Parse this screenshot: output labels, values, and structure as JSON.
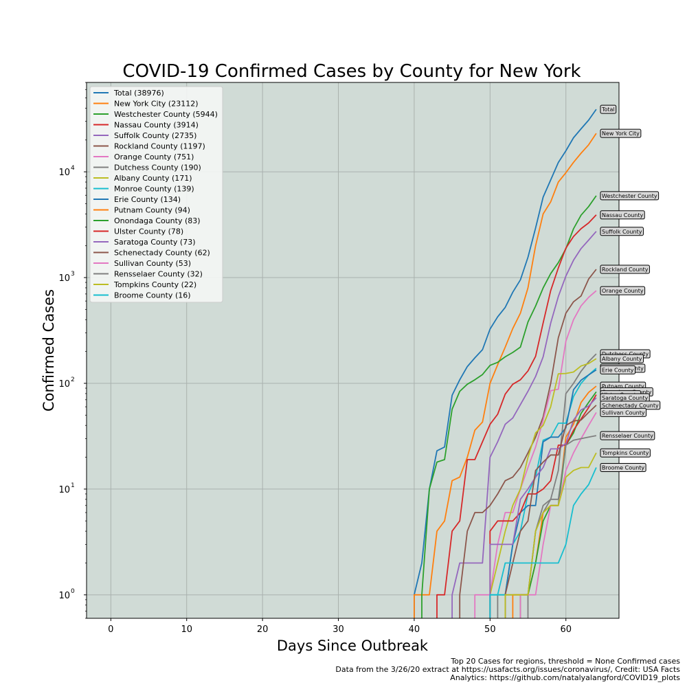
{
  "chart_data": {
    "type": "line",
    "title": "COVID-19 Confirmed Cases by County for New York",
    "xlabel": "Days Since Outbreak",
    "ylabel": "Confirmed Cases",
    "xlim": [
      -3.2,
      67
    ],
    "ylim": [
      0.6,
      70000
    ],
    "yscale": "log",
    "x_ticks": [
      0,
      10,
      20,
      30,
      40,
      50,
      60
    ],
    "y_ticks": [
      {
        "value": 1,
        "base": "10",
        "exp": "0"
      },
      {
        "value": 10,
        "base": "10",
        "exp": "1"
      },
      {
        "value": 100,
        "base": "10",
        "exp": "2"
      },
      {
        "value": 1000,
        "base": "10",
        "exp": "3"
      },
      {
        "value": 10000,
        "base": "10",
        "exp": "4"
      }
    ],
    "grid": true,
    "legend_position": "upper-left",
    "plot_background": "#d0dbd6",
    "series": [
      {
        "name": "Total",
        "legend": "Total (38976)",
        "end_label": "Total",
        "color": "#1f77b4",
        "x": [
          40,
          41,
          42,
          43,
          44,
          45,
          46,
          47,
          48,
          49,
          50,
          51,
          52,
          53,
          54,
          55,
          56,
          57,
          58,
          59,
          60,
          61,
          62,
          63,
          64
        ],
        "y": [
          1,
          2,
          10,
          23,
          25,
          77,
          108,
          144,
          174,
          208,
          326,
          425,
          523,
          728,
          953,
          1555,
          2940,
          5765,
          8377,
          12261,
          15800,
          21000,
          25500,
          30800,
          38976
        ]
      },
      {
        "name": "New York City",
        "legend": "New York City (23112)",
        "end_label": "New York City",
        "color": "#ff7f0e",
        "x": [
          40,
          41,
          42,
          43,
          44,
          45,
          46,
          47,
          48,
          49,
          50,
          51,
          52,
          53,
          54,
          55,
          56,
          57,
          58,
          59,
          60,
          61,
          62,
          63,
          64
        ],
        "y": [
          1,
          1,
          1,
          4,
          5,
          12,
          13,
          20,
          36,
          43,
          100,
          150,
          220,
          330,
          460,
          800,
          2000,
          4000,
          5200,
          8000,
          9800,
          12300,
          15000,
          18000,
          23112
        ]
      },
      {
        "name": "Westchester County",
        "legend": "Westchester County (5944)",
        "end_label": "Westchester County",
        "color": "#2ca02c",
        "x": [
          41,
          42,
          43,
          44,
          45,
          46,
          47,
          48,
          49,
          50,
          51,
          52,
          53,
          54,
          55,
          56,
          57,
          58,
          59,
          60,
          61,
          62,
          63,
          64
        ],
        "y": [
          1,
          10,
          18,
          19,
          57,
          84,
          98,
          108,
          121,
          148,
          158,
          178,
          196,
          220,
          380,
          538,
          798,
          1091,
          1385,
          1873,
          2894,
          3891,
          4691,
          5944
        ]
      },
      {
        "name": "Nassau County",
        "legend": "Nassau County (3914)",
        "end_label": "Nassau County",
        "color": "#d62728",
        "x": [
          43,
          44,
          45,
          46,
          47,
          48,
          49,
          50,
          51,
          52,
          53,
          54,
          55,
          56,
          57,
          58,
          59,
          60,
          61,
          62,
          63,
          64
        ],
        "y": [
          1,
          1,
          4,
          5,
          19,
          19,
          28,
          41,
          51,
          79,
          98,
          108,
          131,
          180,
          372,
          754,
          1234,
          1900,
          2442,
          2900,
          3285,
          3914
        ]
      },
      {
        "name": "Suffolk County",
        "legend": "Suffolk County (2735)",
        "end_label": "Suffolk County",
        "color": "#9467bd",
        "x": [
          45,
          46,
          47,
          48,
          49,
          50,
          51,
          52,
          53,
          54,
          55,
          56,
          57,
          58,
          59,
          60,
          61,
          62,
          63,
          64
        ],
        "y": [
          1,
          2,
          2,
          2,
          2,
          20,
          28,
          41,
          47,
          63,
          84,
          116,
          178,
          371,
          662,
          1034,
          1458,
          1880,
          2260,
          2735
        ]
      },
      {
        "name": "Rockland County",
        "legend": "Rockland County (1197)",
        "end_label": "Rockland County",
        "color": "#8c564b",
        "x": [
          46,
          47,
          48,
          49,
          50,
          51,
          52,
          53,
          54,
          55,
          56,
          57,
          58,
          59,
          60,
          61,
          62,
          63,
          64
        ],
        "y": [
          1,
          4,
          6,
          6,
          7,
          9,
          12,
          13,
          16,
          22,
          31,
          48,
          100,
          270,
          460,
          590,
          670,
          968,
          1197
        ]
      },
      {
        "name": "Orange County",
        "legend": "Orange County (751)",
        "end_label": "Orange County",
        "color": "#e377c2",
        "x": [
          48,
          49,
          50,
          51,
          52,
          53,
          54,
          55,
          56,
          57,
          58,
          59,
          60,
          61,
          62,
          63,
          64
        ],
        "y": [
          1,
          1,
          1,
          3,
          6,
          6,
          10,
          16,
          25,
          45,
          85,
          88,
          250,
          400,
          540,
          650,
          751
        ]
      },
      {
        "name": "Dutchess County",
        "legend": "Dutchess County (190)",
        "end_label": "Dutchess County",
        "color": "#7f7f7f",
        "x": [
          51,
          52,
          53,
          54,
          55,
          56,
          57,
          58,
          59,
          60,
          61,
          62,
          63,
          64
        ],
        "y": [
          1,
          1,
          1,
          1,
          1,
          4,
          7,
          8,
          15,
          80,
          100,
          130,
          160,
          190
        ]
      },
      {
        "name": "Albany County",
        "legend": "Albany County (171)",
        "end_label": "Albany County",
        "color": "#bcbd22",
        "x": [
          50,
          51,
          52,
          53,
          54,
          55,
          56,
          57,
          58,
          59,
          60,
          61,
          62,
          63,
          64
        ],
        "y": [
          1,
          2,
          4,
          7,
          10,
          20,
          34,
          40,
          60,
          123,
          124,
          128,
          146,
          154,
          171
        ]
      },
      {
        "name": "Monroe County",
        "legend": "Monroe County (139)",
        "end_label": "Monroe County",
        "color": "#17becf",
        "x": [
          50,
          51,
          52,
          53,
          54,
          55,
          56,
          57,
          58,
          59,
          60,
          61,
          62,
          63,
          64
        ],
        "y": [
          1,
          1,
          1,
          3,
          4,
          9,
          13,
          29,
          31,
          42,
          42,
          75,
          100,
          120,
          139
        ]
      },
      {
        "name": "Erie County",
        "legend": "Erie County (134)",
        "end_label": "Erie County",
        "color": "#1f77b4",
        "x": [
          52,
          53,
          54,
          55,
          56,
          57,
          58,
          59,
          60,
          61,
          62,
          63,
          64
        ],
        "y": [
          1,
          3,
          6,
          7,
          7,
          28,
          31,
          31,
          38,
          87,
          107,
          120,
          134
        ]
      },
      {
        "name": "Putnam County",
        "legend": "Putnam County (94)",
        "end_label": "Putnam County",
        "color": "#ff7f0e",
        "x": [
          53,
          54,
          55,
          56,
          57,
          58,
          59,
          60,
          61,
          62,
          63,
          64
        ],
        "y": [
          1,
          1,
          1,
          2,
          6,
          7,
          7,
          31,
          41,
          66,
          82,
          94
        ]
      },
      {
        "name": "Onondaga County",
        "legend": "Onondaga County (83)",
        "end_label": "Onondaga County",
        "color": "#2ca02c",
        "x": [
          54,
          55,
          56,
          57,
          58,
          59,
          60,
          61,
          62,
          63,
          64
        ],
        "y": [
          1,
          1,
          2,
          5,
          7,
          7,
          26,
          34,
          52,
          66,
          83
        ]
      },
      {
        "name": "Ulster County",
        "legend": "Ulster County (78)",
        "end_label": "Ulster County",
        "color": "#d62728",
        "x": [
          50,
          51,
          52,
          53,
          54,
          55,
          56,
          57,
          58,
          59,
          60,
          61,
          62,
          63,
          64
        ],
        "y": [
          4,
          5,
          5,
          5,
          6,
          9,
          9,
          10,
          12,
          26,
          26,
          36,
          46,
          59,
          78
        ]
      },
      {
        "name": "Saratoga County",
        "legend": "Saratoga County (73)",
        "end_label": "Saratoga County",
        "color": "#9467bd",
        "x": [
          50,
          51,
          52,
          53,
          54,
          55,
          56,
          57,
          58,
          59,
          60,
          61,
          62,
          63,
          64
        ],
        "y": [
          3,
          3,
          3,
          3,
          8,
          10,
          13,
          16,
          24,
          24,
          27,
          45,
          56,
          61,
          73
        ]
      },
      {
        "name": "Schenectady County",
        "legend": "Schenectady County (62)",
        "end_label": "Schenectady County",
        "color": "#8c564b",
        "x": [
          52,
          53,
          54,
          55,
          56,
          57,
          58,
          59,
          60,
          61,
          62,
          63,
          64
        ],
        "y": [
          1,
          2,
          4,
          5,
          15,
          18,
          21,
          21,
          40,
          44,
          45,
          53,
          62
        ]
      },
      {
        "name": "Sullivan County",
        "legend": "Sullivan County (53)",
        "end_label": "Sullivan County",
        "color": "#e377c2",
        "x": [
          54,
          55,
          56,
          57,
          58,
          59,
          60,
          61,
          62,
          63,
          64
        ],
        "y": [
          1,
          1,
          1,
          3,
          7,
          7,
          15,
          22,
          30,
          40,
          53
        ]
      },
      {
        "name": "Rensselaer County",
        "legend": "Rensselaer County (32)",
        "end_label": "Rensselaer County",
        "color": "#7f7f7f",
        "x": [
          55,
          56,
          57,
          58,
          59,
          60,
          61,
          62,
          63,
          64
        ],
        "y": [
          1,
          4,
          6,
          8,
          8,
          26,
          29,
          30,
          31,
          32
        ]
      },
      {
        "name": "Tompkins County",
        "legend": "Tompkins County (22)",
        "end_label": "Tompkins County",
        "color": "#bcbd22",
        "x": [
          52,
          53,
          54,
          55,
          56,
          57,
          58,
          59,
          60,
          61,
          62,
          63,
          64
        ],
        "y": [
          1,
          1,
          1,
          1,
          4,
          6,
          7,
          7,
          13,
          15,
          16,
          16,
          22
        ]
      },
      {
        "name": "Broome County",
        "legend": "Broome County (16)",
        "end_label": "Broome County",
        "color": "#17becf",
        "x": [
          50,
          51,
          52,
          53,
          54,
          55,
          56,
          57,
          58,
          59,
          60,
          61,
          62,
          63,
          64
        ],
        "y": [
          1,
          1,
          2,
          2,
          2,
          2,
          2,
          2,
          2,
          2,
          3,
          7,
          9,
          11,
          16
        ]
      }
    ],
    "footnotes": [
      "Top 20 Cases for regions, threshold = None Confirmed cases",
      "Data from the 3/26/20 extract at https://usafacts.org/issues/coronavirus/, Credit: USA Facts",
      "Analytics: https://github.com/natalyalangford/COVID19_plots"
    ]
  }
}
